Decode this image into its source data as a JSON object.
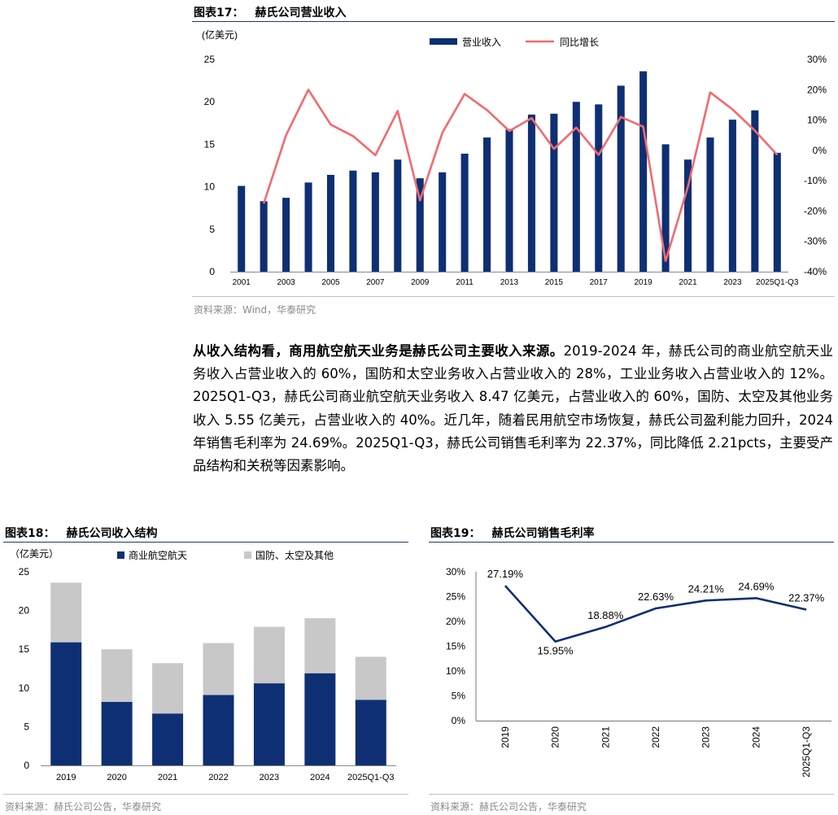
{
  "fig17": {
    "label": "图表17：",
    "title": "赫氏公司营业收入",
    "source": "资料来源：Wind，华泰研究",
    "chart_data": {
      "type": "bar+line",
      "unit": "(亿美元)",
      "categories": [
        "2001",
        "2002",
        "2003",
        "2004",
        "2005",
        "2006",
        "2007",
        "2008",
        "2009",
        "2010",
        "2011",
        "2012",
        "2013",
        "2014",
        "2015",
        "2016",
        "2017",
        "2018",
        "2019",
        "2020",
        "2021",
        "2022",
        "2023",
        "2024",
        "2025Q1-Q3"
      ],
      "x_tick_labels": [
        "2001",
        "2003",
        "2005",
        "2007",
        "2009",
        "2011",
        "2013",
        "2015",
        "2017",
        "2019",
        "2021",
        "2023",
        "2025Q1-Q3"
      ],
      "series": [
        {
          "name": "营业收入",
          "kind": "bar",
          "axis": "left",
          "color": "#0e2f73",
          "values": [
            10.1,
            8.3,
            8.7,
            10.5,
            11.4,
            11.9,
            11.7,
            13.2,
            11.0,
            11.7,
            13.9,
            15.8,
            16.8,
            18.5,
            18.6,
            20.0,
            19.7,
            21.9,
            23.6,
            15.0,
            13.2,
            15.8,
            17.9,
            19.0,
            14.0
          ]
        },
        {
          "name": "同比增长",
          "kind": "line",
          "axis": "right",
          "color": "#f26a6f",
          "values": [
            null,
            -17.5,
            5.0,
            20.0,
            8.5,
            4.7,
            -1.6,
            13.0,
            -16.5,
            5.8,
            18.6,
            13.3,
            6.4,
            10.6,
            0.5,
            7.5,
            -1.5,
            11.0,
            7.8,
            -36.5,
            -12.0,
            19.1,
            13.5,
            6.5,
            -1.5
          ]
        }
      ],
      "left_axis": {
        "min": 0,
        "max": 25,
        "ticks": [
          "0",
          "5",
          "10",
          "15",
          "20",
          "25"
        ]
      },
      "right_axis": {
        "min": -40,
        "max": 30,
        "ticks": [
          "-40%",
          "-30%",
          "-20%",
          "-10%",
          "0%",
          "10%",
          "20%",
          "30%"
        ]
      },
      "legend_position": "top-center"
    }
  },
  "paragraph": {
    "lead": "从收入结构看，商用航空航天业务是赫氏公司主要收入来源。",
    "text": "2019-2024 年，赫氏公司的商业航空航天业务收入占营业收入的 60%，国防和太空业务收入占营业收入的 28%，工业业务收入占营业收入的 12%。2025Q1-Q3，赫氏公司商业航空航天业务收入 8.47 亿美元，占营业收入的 60%，国防、太空及其他业务收入 5.55 亿美元，占营业收入的 40%。近几年，随着民用航空市场恢复，赫氏公司盈利能力回升，2024 年销售毛利率为 24.69%。2025Q1-Q3，赫氏公司销售毛利率为 22.37%，同比降低 2.21pcts，主要受产品结构和关税等因素影响。"
  },
  "fig18": {
    "label": "图表18：",
    "title": "赫氏公司收入结构",
    "source": "资料来源：赫氏公司公告，华泰研究",
    "chart_data": {
      "type": "stacked-bar",
      "unit": "（亿美元）",
      "categories": [
        "2019",
        "2020",
        "2021",
        "2022",
        "2023",
        "2024",
        "2025Q1-Q3"
      ],
      "series": [
        {
          "name": "商业航空航天",
          "color": "#0e2f73",
          "values": [
            15.9,
            8.2,
            6.7,
            9.1,
            10.6,
            11.9,
            8.47
          ]
        },
        {
          "name": "国防、太空及其他",
          "color": "#c8c8c8",
          "values": [
            7.7,
            6.8,
            6.5,
            6.7,
            7.3,
            7.1,
            5.55
          ]
        }
      ],
      "y_axis": {
        "min": 0,
        "max": 25,
        "ticks": [
          "0",
          "5",
          "10",
          "15",
          "20",
          "25"
        ]
      },
      "legend_position": "top"
    }
  },
  "fig19": {
    "label": "图表19：",
    "title": "赫氏公司销售毛利率",
    "source": "资料来源：赫氏公司公告，华泰研究",
    "chart_data": {
      "type": "line",
      "categories": [
        "2019",
        "2020",
        "2021",
        "2022",
        "2023",
        "2024",
        "2025Q1-Q3"
      ],
      "values": [
        27.19,
        15.95,
        18.88,
        22.63,
        24.21,
        24.69,
        22.37
      ],
      "data_labels": [
        "27.19%",
        "15.95%",
        "18.88%",
        "22.63%",
        "24.21%",
        "24.69%",
        "22.37%"
      ],
      "color": "#0e2f73",
      "y_axis": {
        "min": 0,
        "max": 30,
        "ticks": [
          "0%",
          "5%",
          "10%",
          "15%",
          "20%",
          "25%",
          "30%"
        ]
      }
    }
  }
}
